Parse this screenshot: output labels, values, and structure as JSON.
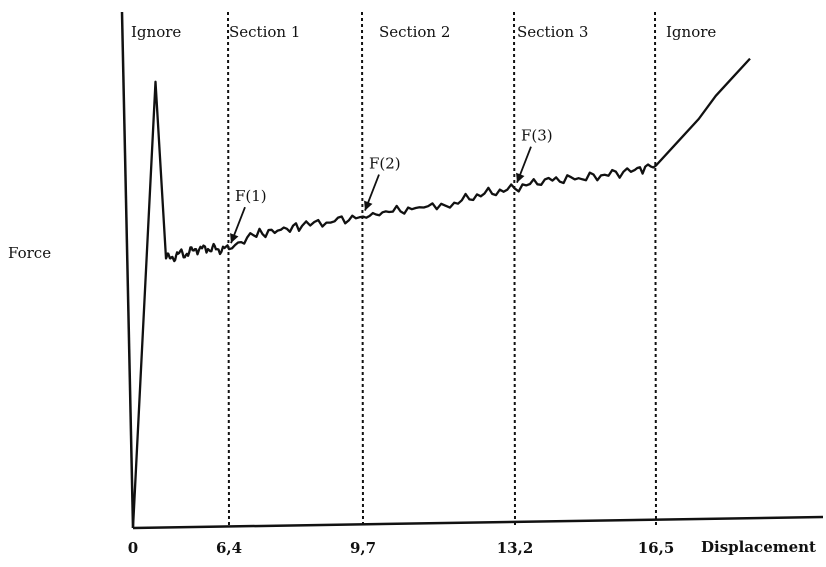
{
  "chart_data": {
    "type": "line",
    "xlabel": "Displacement",
    "ylabel": "Force",
    "ticks": [
      {
        "value": 0,
        "label": "0"
      },
      {
        "value": 6.4,
        "label": "6,4"
      },
      {
        "value": 9.7,
        "label": "9,7"
      },
      {
        "value": 13.2,
        "label": "13,2"
      },
      {
        "value": 16.5,
        "label": "16,5"
      }
    ],
    "dividers": [
      6.4,
      9.7,
      13.2,
      16.5
    ],
    "sections": [
      {
        "label": "Ignore",
        "x": 0.0
      },
      {
        "label": "Section 1",
        "x": 6.4
      },
      {
        "label": "Section 2",
        "x": 9.7
      },
      {
        "label": "Section 3",
        "x": 13.2
      },
      {
        "label": "Ignore",
        "x": 16.5
      }
    ],
    "annotations": [
      {
        "label": "F(1)",
        "x": 6.4,
        "y": 0.6
      },
      {
        "label": "F(2)",
        "x": 9.7,
        "y": 0.67
      },
      {
        "label": "F(3)",
        "x": 13.2,
        "y": 0.73
      }
    ],
    "series": [
      {
        "points": [
          [
            0.0,
            0.0
          ],
          [
            1.5,
            0.96
          ],
          [
            2.2,
            0.58
          ],
          [
            2.5,
            0.58
          ],
          [
            3.0,
            0.59
          ],
          [
            3.6,
            0.59
          ],
          [
            4.2,
            0.6
          ],
          [
            5.0,
            0.6
          ],
          [
            5.6,
            0.6
          ],
          [
            6.4,
            0.6
          ],
          [
            7.0,
            0.63
          ],
          [
            7.6,
            0.64
          ],
          [
            8.2,
            0.65
          ],
          [
            9.0,
            0.66
          ],
          [
            9.7,
            0.67
          ],
          [
            10.3,
            0.68
          ],
          [
            11.0,
            0.69
          ],
          [
            11.8,
            0.7
          ],
          [
            12.5,
            0.72
          ],
          [
            13.2,
            0.73
          ],
          [
            13.9,
            0.75
          ],
          [
            14.6,
            0.75
          ],
          [
            15.3,
            0.76
          ],
          [
            16.0,
            0.77
          ],
          [
            16.5,
            0.78
          ],
          [
            17.0,
            0.83
          ],
          [
            17.5,
            0.88
          ],
          [
            17.9,
            0.93
          ],
          [
            18.3,
            0.97
          ],
          [
            18.7,
            1.01
          ]
        ]
      }
    ],
    "xlim": [
      0,
      20
    ],
    "ylim": [
      0,
      1.05
    ],
    "grid": false,
    "colors": {
      "line": "#111111",
      "axis": "#111111",
      "divider": "#111111"
    }
  }
}
